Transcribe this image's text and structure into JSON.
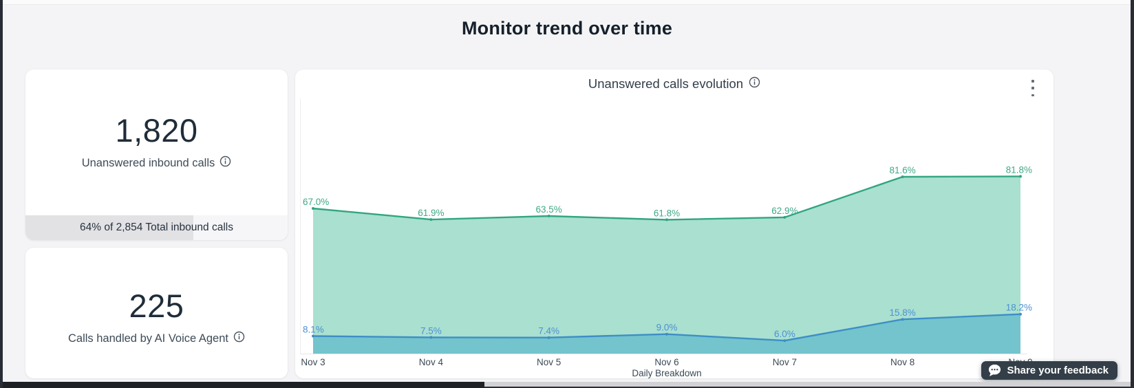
{
  "page": {
    "title": "Monitor trend over time",
    "background_color": "#f4f4f6",
    "frame_color": "#272c35"
  },
  "stat_unanswered": {
    "value": "1,820",
    "label": "Unanswered inbound calls",
    "progress_percent": 64,
    "progress_text": "64% of 2,854 Total inbound calls"
  },
  "stat_handled": {
    "value": "225",
    "label": "Calls handled by AI Voice Agent"
  },
  "feedback_button": {
    "label": "Share your feedback",
    "background_color": "#333e48"
  },
  "chart_data": {
    "type": "area",
    "title": "Unanswered calls evolution",
    "categories": [
      "Nov 3",
      "Nov 4",
      "Nov 5",
      "Nov 6",
      "Nov 7",
      "Nov 8",
      "Nov 9"
    ],
    "series": [
      {
        "name": "green-series",
        "values": [
          67.0,
          61.9,
          63.5,
          61.8,
          62.9,
          81.6,
          81.8
        ],
        "line_color": "#31a580",
        "fill_color": "#a9e0d0",
        "label_color": "#3fa98a"
      },
      {
        "name": "blue-series",
        "values": [
          8.1,
          7.5,
          7.4,
          9.0,
          6.0,
          15.8,
          18.2
        ],
        "line_color": "#3e8ec5",
        "fill_color": "#73c4cc",
        "label_color": "#4e90d3"
      }
    ],
    "value_suffix": "%",
    "xlabel": "Daily Breakdown",
    "ylim": [
      0,
      100
    ],
    "grid": false,
    "legend": "none",
    "data_labels": true,
    "axis_color": "#e4e5e8",
    "tick_label_color": "#3c4955"
  }
}
